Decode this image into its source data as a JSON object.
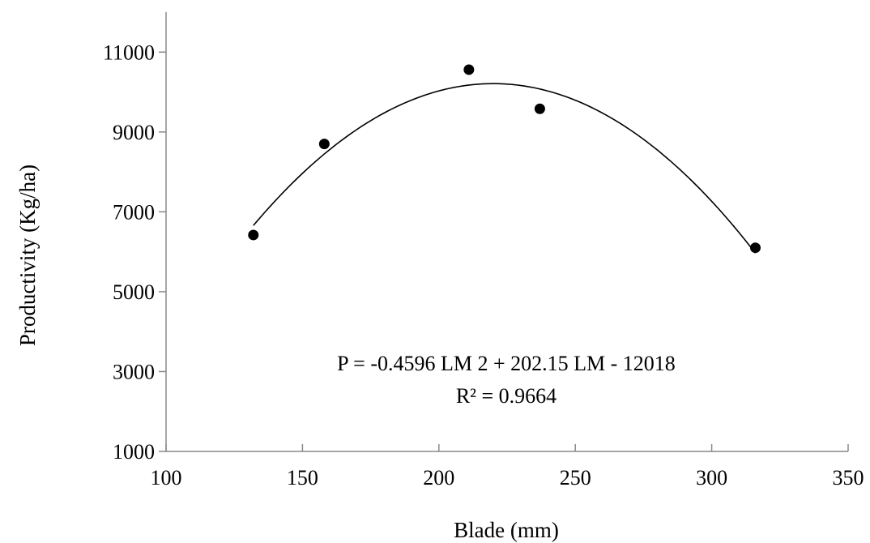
{
  "chart_data": {
    "type": "scatter",
    "title": "",
    "xlabel": "Blade (mm)",
    "ylabel": "Productivity (Kg/ha)",
    "xlim": [
      100,
      350
    ],
    "ylim": [
      1000,
      12000
    ],
    "x_ticks": [
      100,
      150,
      200,
      250,
      300,
      350
    ],
    "y_ticks": [
      1000,
      3000,
      5000,
      7000,
      9000,
      11000
    ],
    "grid": false,
    "points": [
      {
        "x": 132,
        "y": 6420
      },
      {
        "x": 158,
        "y": 8700
      },
      {
        "x": 211,
        "y": 10560
      },
      {
        "x": 237,
        "y": 9580
      },
      {
        "x": 316,
        "y": 6100
      }
    ],
    "trendline": {
      "type": "polynomial",
      "coefficients": [
        -0.4596,
        202.15,
        -12018
      ],
      "x_range": [
        132,
        316
      ]
    },
    "annotations": [
      "P = -0.4596 LM 2 + 202.15 LM - 12018",
      "R² = 0.9664"
    ]
  }
}
